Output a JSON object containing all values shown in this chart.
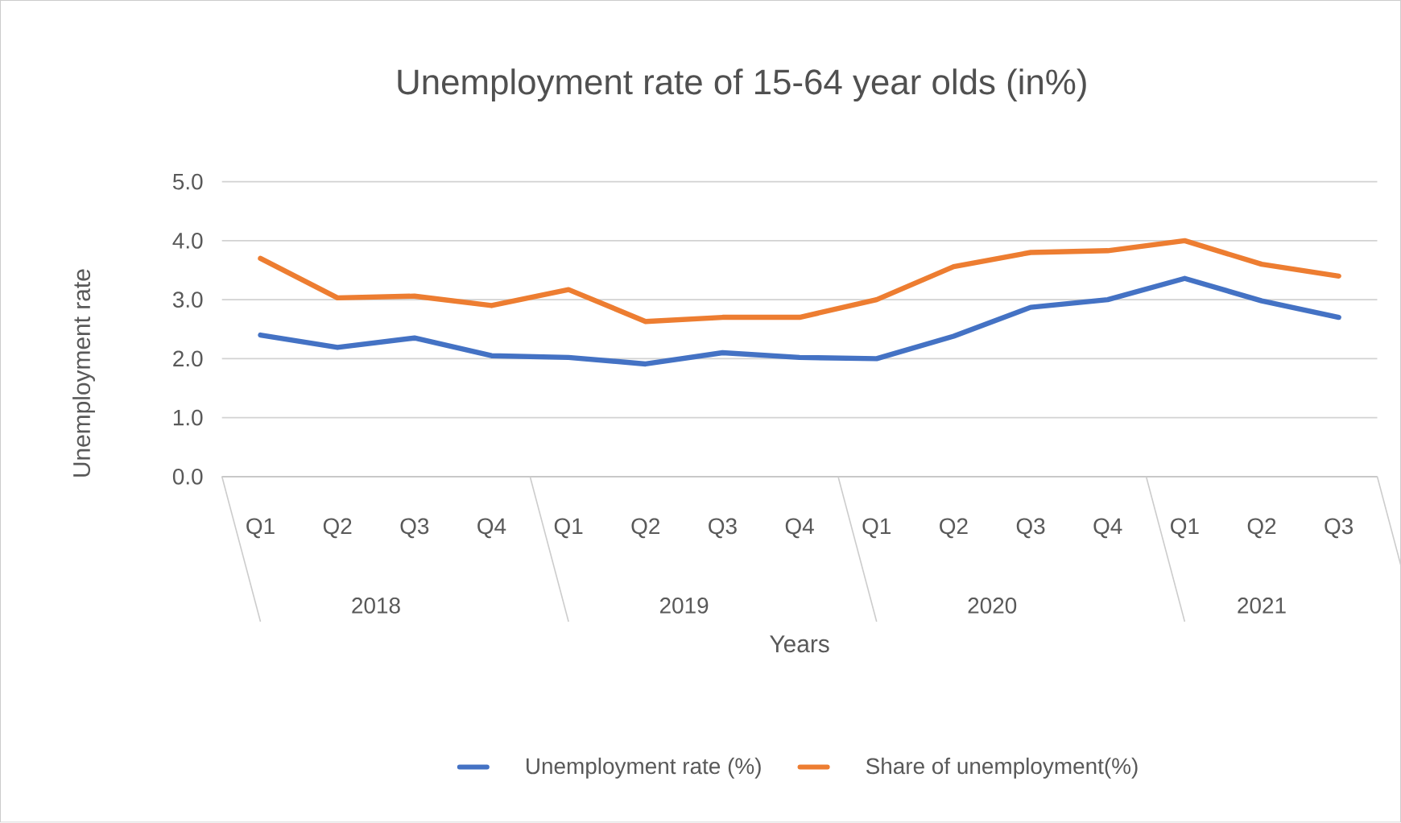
{
  "chart_data": {
    "type": "line",
    "title": "Unemployment rate of 15-64 year olds (in%)",
    "xlabel": "Years",
    "ylabel": "Unemployment rate",
    "categories": [
      "Q1",
      "Q2",
      "Q3",
      "Q4",
      "Q1",
      "Q2",
      "Q3",
      "Q4",
      "Q1",
      "Q2",
      "Q3",
      "Q4",
      "Q1",
      "Q2",
      "Q3"
    ],
    "annotations": [
      "2018",
      "2019",
      "2020",
      "2021"
    ],
    "series": [
      {
        "name": "Unemployment rate (%)",
        "color": "#4472c4",
        "values": [
          2.4,
          2.19,
          2.35,
          2.05,
          2.02,
          1.91,
          2.1,
          2.02,
          2.0,
          2.38,
          2.87,
          3.0,
          3.36,
          2.98,
          2.7
        ]
      },
      {
        "name": "Share of unemployment(%)",
        "color": "#ed7d31",
        "values": [
          3.7,
          3.03,
          3.06,
          2.9,
          3.17,
          2.63,
          2.7,
          2.7,
          3.0,
          3.56,
          3.8,
          3.83,
          4.0,
          3.6,
          3.4
        ]
      }
    ],
    "ylim": [
      0,
      5
    ],
    "yticks": [
      {
        "value": 0,
        "label": "0.0"
      },
      {
        "value": 1,
        "label": "1.0"
      },
      {
        "value": 2,
        "label": "2.0"
      },
      {
        "value": 3,
        "label": "3.0"
      },
      {
        "value": 4,
        "label": "4.0"
      },
      {
        "value": 5,
        "label": "5.0"
      }
    ],
    "grid": "y",
    "legend": "bottom",
    "marker": "none",
    "line_style": "solid"
  }
}
